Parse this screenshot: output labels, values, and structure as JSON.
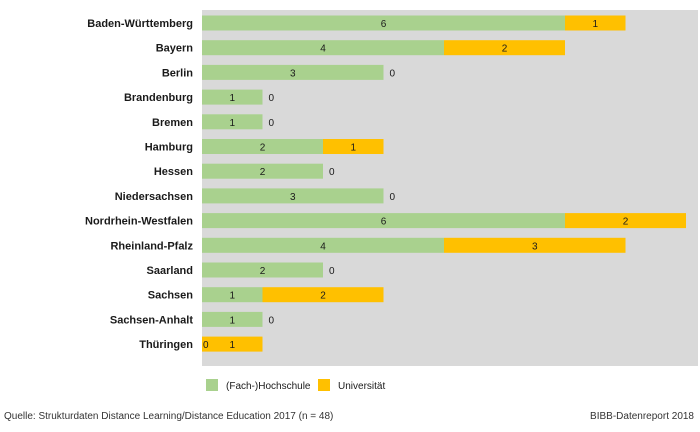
{
  "chart_data": {
    "type": "bar",
    "orientation": "horizontal",
    "stacked": true,
    "categories": [
      "Baden-Württemberg",
      "Bayern",
      "Berlin",
      "Brandenburg",
      "Bremen",
      "Hamburg",
      "Hessen",
      "Niedersachsen",
      "Nordrhein-Westfalen",
      "Rheinland-Pfalz",
      "Saarland",
      "Sachsen",
      "Sachsen-Anhalt",
      "Thüringen"
    ],
    "series": [
      {
        "name": "(Fach-)Hochschule",
        "color": "#a9d18e",
        "values": [
          6,
          4,
          3,
          1,
          1,
          2,
          2,
          3,
          6,
          4,
          2,
          1,
          1,
          0
        ]
      },
      {
        "name": "Universität",
        "color": "#ffc000",
        "values": [
          1,
          2,
          0,
          0,
          0,
          1,
          0,
          0,
          2,
          3,
          0,
          2,
          0,
          1
        ]
      }
    ],
    "xlim": [
      0,
      8
    ],
    "title": "",
    "xlabel": "",
    "ylabel": "",
    "plot_background": "#d9d9d9",
    "legend_position": "bottom"
  },
  "footer": {
    "source": "Quelle: Strukturdaten Distance Learning/Distance Education 2017 (n = 48)",
    "credit": "BIBB-Datenreport 2018"
  }
}
